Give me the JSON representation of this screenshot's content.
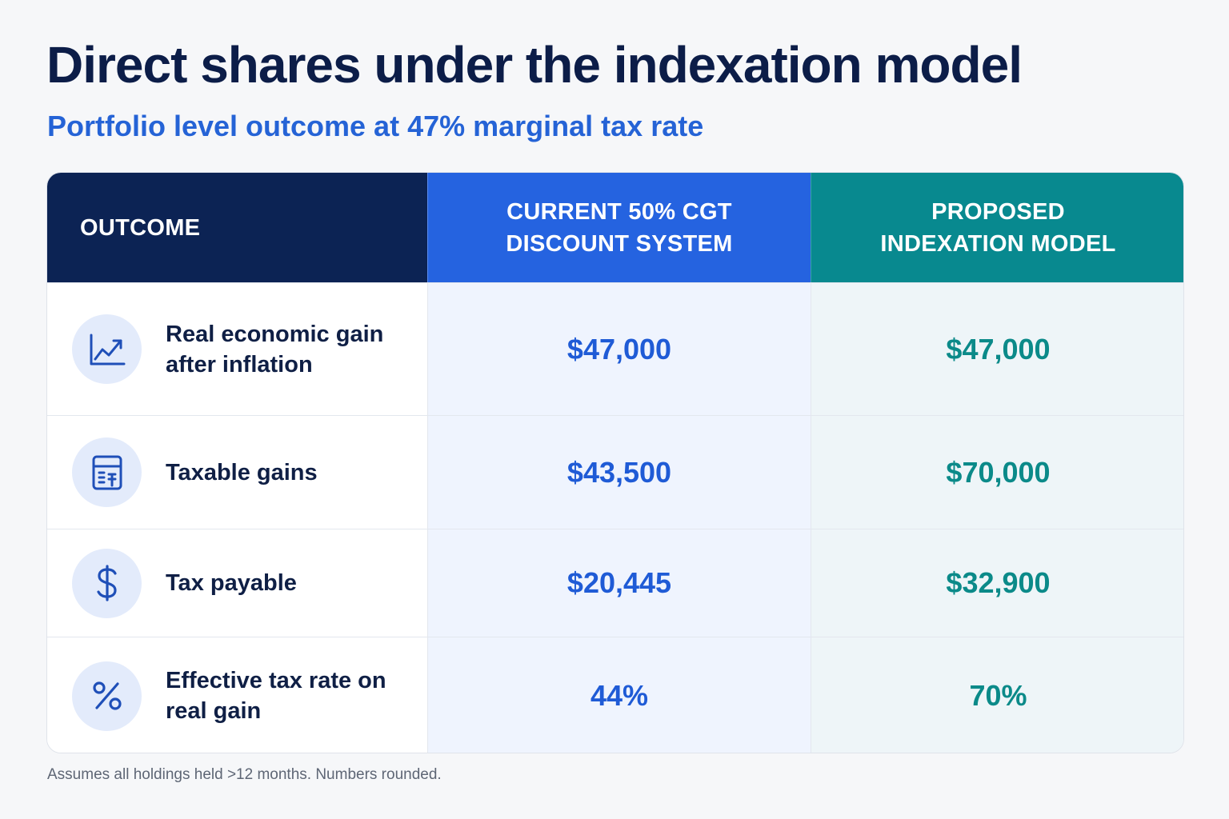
{
  "title": "Direct shares under the indexation model",
  "subtitle": "Portfolio level outcome at 47% marginal tax rate",
  "table": {
    "headers": {
      "outcome": "OUTCOME",
      "current": "CURRENT 50% CGT DISCOUNT SYSTEM",
      "proposed": "PROPOSED INDEXATION MODEL"
    },
    "rows": [
      {
        "icon": "trending-up-chart-icon",
        "label": "Real economic gain after inflation",
        "current": "$47,000",
        "proposed": "$47,000"
      },
      {
        "icon": "calculator-icon",
        "label": "Taxable gains",
        "current": "$43,500",
        "proposed": "$70,000"
      },
      {
        "icon": "dollar-sign-icon",
        "label": "Tax payable",
        "current": "$20,445",
        "proposed": "$32,900"
      },
      {
        "icon": "percent-icon",
        "label": "Effective tax rate on real gain",
        "current": "44%",
        "proposed": "70%"
      }
    ]
  },
  "footnote": "Assumes all holdings held >12 months. Numbers rounded.",
  "colors": {
    "title": "#0c1d48",
    "subtitle": "#2563d6",
    "header_outcome": "#0c2354",
    "header_current": "#2563e0",
    "header_proposed": "#08898f",
    "value_current": "#1f5bd6",
    "value_proposed": "#0b8a89"
  }
}
